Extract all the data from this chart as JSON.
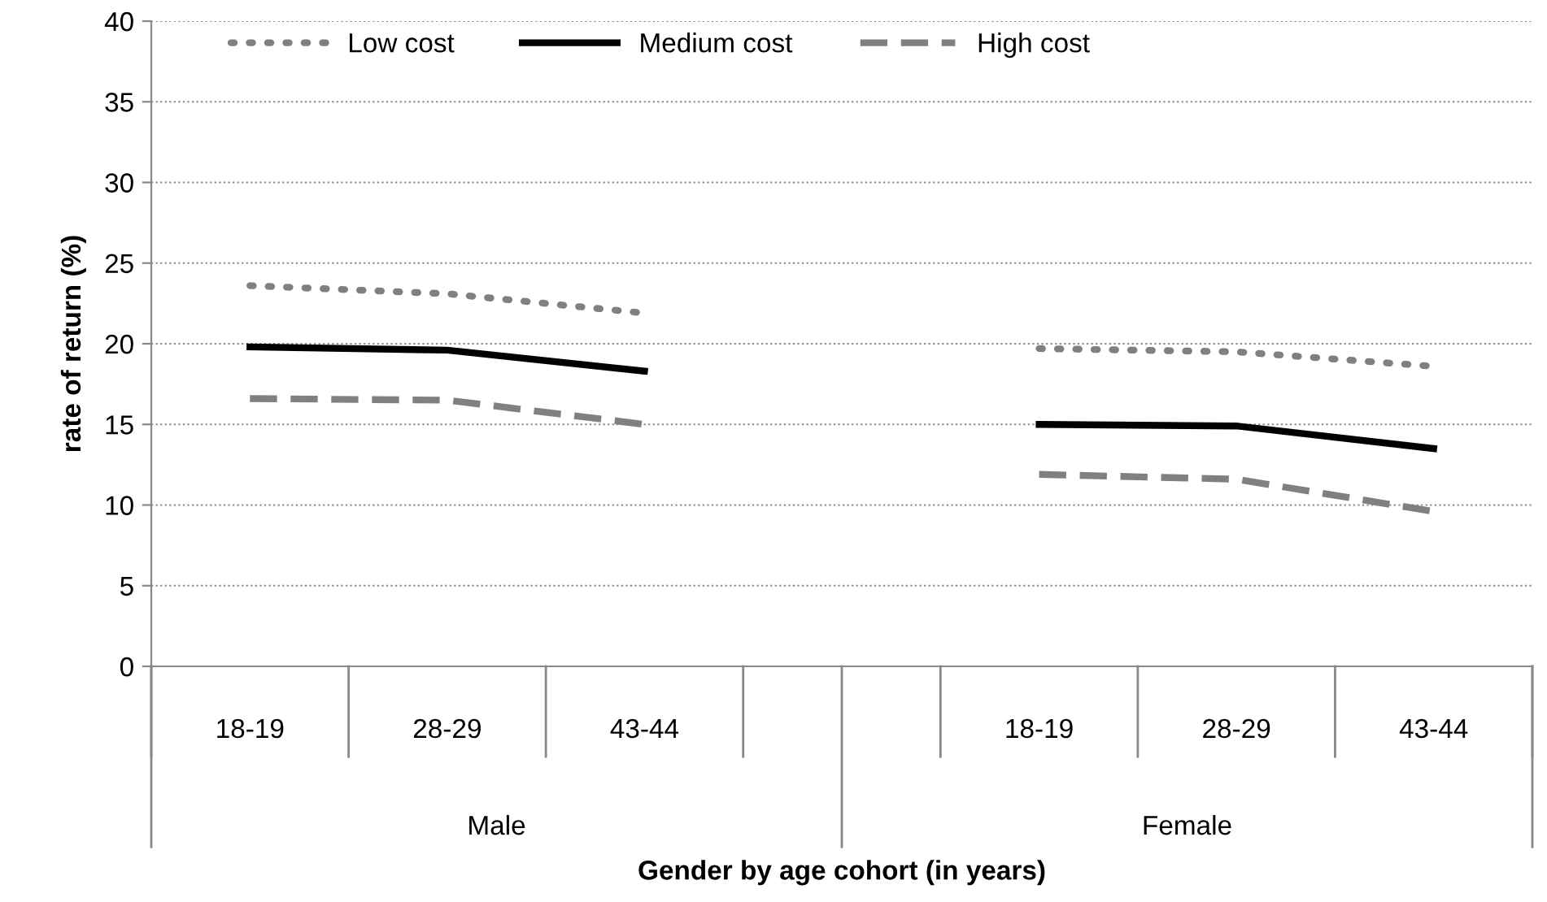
{
  "chart_data": {
    "type": "line",
    "ylabel": "rate of return (%)",
    "xlabel": "Gender by age cohort (in years)",
    "categories": [
      "18-19",
      "28-29",
      "43-44",
      null,
      "18-19",
      "28-29",
      "43-44"
    ],
    "series": [
      {
        "name": "Low cost",
        "color": "#808080",
        "line_style": "dotted",
        "values": [
          23.6,
          23.1,
          21.9,
          null,
          19.7,
          19.5,
          18.6
        ]
      },
      {
        "name": "Medium cost",
        "color": "#000000",
        "line_style": "solid",
        "values": [
          19.8,
          19.6,
          18.3,
          null,
          15.0,
          14.9,
          13.5
        ]
      },
      {
        "name": "High cost",
        "color": "#808080",
        "line_style": "dashed",
        "values": [
          16.6,
          16.5,
          15.0,
          null,
          11.9,
          11.6,
          9.6
        ]
      }
    ],
    "annotations": [
      "Male",
      "Female"
    ],
    "ylim": [
      0,
      40
    ],
    "yticks": [
      0,
      5,
      10,
      15,
      20,
      25,
      30,
      35,
      40
    ],
    "grid": "y",
    "legend": "top left",
    "marker": "none"
  }
}
